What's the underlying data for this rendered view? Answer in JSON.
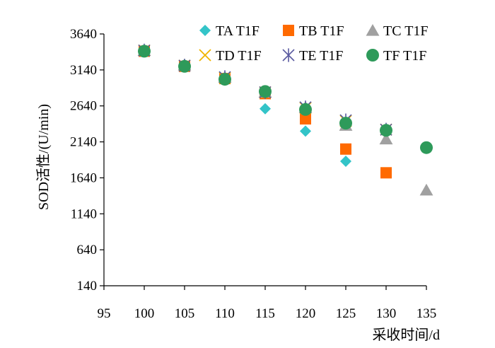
{
  "chart_data": {
    "type": "scatter",
    "title": "",
    "xlabel": "采收时间/d",
    "ylabel": "SOD活性/(U/min)",
    "xlim": [
      95,
      135
    ],
    "ylim": [
      140,
      3640
    ],
    "xticks": [
      95,
      100,
      105,
      110,
      115,
      120,
      125,
      130,
      135
    ],
    "yticks": [
      140,
      640,
      1140,
      1640,
      2140,
      2640,
      3140,
      3640
    ],
    "grid": false,
    "legend_position": "top-right",
    "series": [
      {
        "name": "TA T1F",
        "marker": "diamond",
        "color": "#33C4C8",
        "x": [
          100,
          105,
          110,
          115,
          120,
          125
        ],
        "y": [
          3400,
          3200,
          3020,
          2600,
          2290,
          1870
        ]
      },
      {
        "name": "TB T1F",
        "marker": "square",
        "color": "#FF6A00",
        "x": [
          100,
          105,
          110,
          115,
          120,
          125,
          130
        ],
        "y": [
          3400,
          3190,
          3020,
          2810,
          2460,
          2040,
          1710
        ]
      },
      {
        "name": "TC T1F",
        "marker": "triangle",
        "color": "#A0A0A0",
        "x": [
          100,
          105,
          110,
          115,
          120,
          125,
          130,
          135
        ],
        "y": [
          3410,
          3210,
          3040,
          2830,
          2620,
          2370,
          2180,
          1470
        ]
      },
      {
        "name": "TD T1F",
        "marker": "x",
        "color": "#F0B400",
        "x": [
          100,
          105,
          110,
          115,
          120,
          125,
          130
        ],
        "y": [
          3410,
          3200,
          3030,
          2830,
          2610,
          2430,
          2310
        ]
      },
      {
        "name": "TE T1F",
        "marker": "asterisk",
        "color": "#5A5AA0",
        "x": [
          100,
          105,
          110,
          115,
          120,
          125,
          130
        ],
        "y": [
          3410,
          3200,
          3040,
          2830,
          2620,
          2440,
          2310
        ]
      },
      {
        "name": "TF T1F",
        "marker": "circle",
        "color": "#2E9A5A",
        "x": [
          100,
          105,
          110,
          115,
          120,
          125,
          130,
          135
        ],
        "y": [
          3400,
          3190,
          3010,
          2840,
          2590,
          2400,
          2300,
          2060
        ]
      }
    ]
  }
}
